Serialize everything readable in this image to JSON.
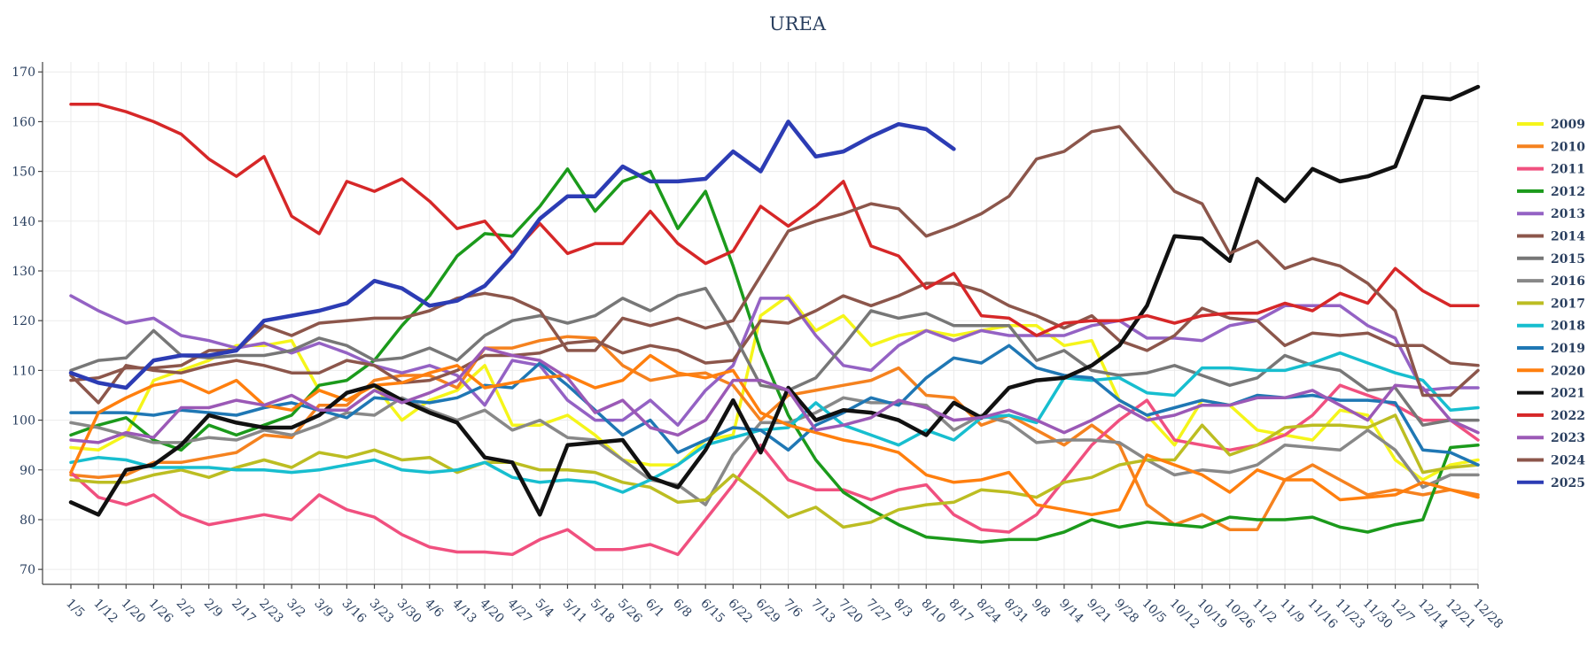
{
  "chart_data": {
    "type": "line",
    "title": "UREA",
    "xlabel": "",
    "ylabel": "",
    "ylim": [
      67,
      172
    ],
    "yticks": [
      70,
      80,
      90,
      100,
      110,
      120,
      130,
      140,
      150,
      160,
      170
    ],
    "x": [
      "1/5",
      "1/12",
      "1/20",
      "1/26",
      "2/2",
      "2/9",
      "2/17",
      "2/23",
      "3/2",
      "3/9",
      "3/16",
      "3/23",
      "3/30",
      "4/6",
      "4/13",
      "4/20",
      "4/27",
      "5/4",
      "5/11",
      "5/18",
      "5/26",
      "6/1",
      "6/8",
      "6/15",
      "6/22",
      "6/29",
      "7/6",
      "7/13",
      "7/20",
      "7/27",
      "8/3",
      "8/10",
      "8/17",
      "8/24",
      "8/31",
      "9/8",
      "9/14",
      "9/21",
      "9/28",
      "10/5",
      "10/12",
      "10/19",
      "10/26",
      "11/2",
      "11/9",
      "11/16",
      "11/23",
      "11/30",
      "12/7",
      "12/14",
      "12/21",
      "12/28"
    ],
    "grid": true,
    "legend_position": "right",
    "series": [
      {
        "name": "2009",
        "color": "#f5f51a",
        "values": [
          94.5,
          94,
          97,
          108,
          110,
          112,
          115,
          115,
          116,
          106,
          104,
          107,
          100,
          104,
          106,
          111,
          99,
          99,
          101,
          97,
          92,
          91,
          91,
          96,
          97,
          121,
          125,
          118,
          121,
          115,
          117,
          118,
          117,
          118,
          119,
          119,
          115,
          116,
          104,
          101,
          95,
          104,
          103,
          98,
          97,
          96,
          102,
          101,
          92,
          88,
          91,
          92
        ]
      },
      {
        "name": "2010",
        "color": "#f5821f",
        "values": [
          89,
          88.5,
          89,
          91.5,
          91.5,
          92.5,
          93.5,
          97,
          96.5,
          103,
          103,
          108,
          109,
          109,
          106.5,
          114.5,
          114.5,
          116,
          116.8,
          116.5,
          111,
          108,
          109,
          109.5,
          107,
          100,
          105,
          106,
          107,
          108,
          110.5,
          105,
          104.5,
          99,
          101,
          98,
          95,
          99,
          95,
          83,
          79,
          81,
          78,
          78,
          88,
          91,
          88,
          85,
          86,
          85,
          86,
          85
        ]
      },
      {
        "name": "2011",
        "color": "#f0507f",
        "values": [
          89.5,
          84.5,
          83,
          85,
          81,
          79,
          80,
          81,
          80,
          85,
          82,
          80.5,
          77,
          74.5,
          73.5,
          73.5,
          73,
          76,
          78,
          74,
          74,
          75,
          73,
          80,
          87,
          95,
          88,
          86,
          86,
          84,
          86,
          87,
          81,
          78,
          77.5,
          81,
          88,
          95,
          100,
          104,
          96,
          95,
          94,
          95,
          97,
          101,
          107,
          105,
          103,
          100,
          100,
          96
        ]
      },
      {
        "name": "2012",
        "color": "#1b9a1b",
        "values": [
          97,
          99,
          100.5,
          96,
          94,
          99,
          97,
          99,
          101,
          107,
          108,
          112,
          119,
          125,
          133,
          137.5,
          137,
          143,
          150.5,
          142,
          148,
          150,
          138.5,
          146,
          131,
          114,
          101,
          92,
          85.5,
          82,
          79,
          76.5,
          76,
          75.5,
          76,
          76,
          77.5,
          80,
          78.5,
          79.5,
          79,
          78.5,
          80.5,
          80,
          80,
          80.5,
          78.5,
          77.5,
          79,
          80,
          94.5,
          95
        ]
      },
      {
        "name": "2013",
        "color": "#9462c4",
        "values": [
          125,
          122,
          119.5,
          120.5,
          117,
          116,
          114.5,
          115.5,
          113.5,
          115.5,
          113.5,
          111,
          109.5,
          111,
          109,
          103,
          112,
          111,
          104,
          100,
          100,
          104,
          99,
          106,
          111,
          124.5,
          124.5,
          117,
          111,
          110,
          115,
          118,
          116,
          118,
          117,
          117,
          117,
          119,
          120,
          116.5,
          116.5,
          116,
          119,
          120,
          123,
          123,
          123,
          119,
          116.5,
          106,
          106.5,
          106.5
        ]
      },
      {
        "name": "2014",
        "color": "#8c564b",
        "values": [
          109,
          103.5,
          111,
          110,
          109.5,
          111,
          112,
          111,
          109.5,
          109.5,
          112,
          111,
          107.5,
          108,
          110,
          113,
          113,
          113.5,
          115.5,
          116,
          113.5,
          115,
          114,
          111.5,
          112,
          120,
          119.5,
          122,
          125,
          123,
          125,
          127.5,
          127.5,
          126,
          123,
          121,
          118.5,
          121,
          116,
          114,
          117,
          122.5,
          120.5,
          120,
          115,
          117.5,
          117,
          117.5,
          115,
          115,
          111.5,
          111
        ]
      },
      {
        "name": "2015",
        "color": "#777777",
        "values": [
          110,
          112,
          112.5,
          118,
          113,
          112.5,
          113,
          113,
          114,
          116.5,
          115,
          112,
          112.5,
          114.5,
          112,
          117,
          120,
          121,
          119.5,
          121,
          124.5,
          122,
          125,
          126.5,
          117.5,
          107,
          106,
          108.5,
          115,
          122,
          120.5,
          121.5,
          119,
          119,
          119,
          112,
          114,
          110,
          109,
          109.5,
          111,
          109,
          107,
          108.5,
          113,
          111,
          110,
          106,
          106.5,
          99,
          100,
          100
        ]
      },
      {
        "name": "2016",
        "color": "#888888",
        "values": [
          99.5,
          98.5,
          97,
          95.5,
          95.5,
          96.5,
          96,
          98,
          97,
          99,
          101.5,
          101,
          104.5,
          102,
          100,
          102,
          98,
          100,
          96.5,
          96,
          92,
          88,
          87,
          83,
          93,
          99.5,
          99.5,
          101.5,
          104.5,
          103.5,
          103.5,
          103,
          98,
          101,
          99.5,
          95.5,
          96,
          96,
          95.5,
          92,
          89,
          90,
          89.5,
          91,
          95,
          94.5,
          94,
          98,
          94,
          86.5,
          89,
          89
        ]
      },
      {
        "name": "2017",
        "color": "#bcbd22",
        "values": [
          88,
          87.5,
          87.5,
          89,
          90,
          88.5,
          90.5,
          92,
          90.5,
          93.5,
          92.5,
          94,
          92,
          92.5,
          89.5,
          91.5,
          91.5,
          90,
          90,
          89.5,
          87.5,
          86.5,
          83.5,
          84,
          89,
          85,
          80.5,
          82.5,
          78.5,
          79.5,
          82,
          83,
          83.5,
          86,
          85.5,
          84.5,
          87.5,
          88.5,
          91,
          92,
          92,
          99,
          93,
          95,
          98.5,
          99,
          99,
          98.5,
          101,
          89.5,
          90.5,
          91
        ]
      },
      {
        "name": "2018",
        "color": "#17becf",
        "values": [
          91.5,
          92.5,
          92,
          90.5,
          90.5,
          90.5,
          90,
          90,
          89.5,
          90,
          91,
          92,
          90,
          89.5,
          90,
          91.5,
          88.5,
          87.5,
          88,
          87.5,
          85.5,
          88,
          91,
          95,
          96.5,
          98,
          98.5,
          103.5,
          99,
          97,
          95,
          98,
          96,
          100.5,
          101,
          99.5,
          108.5,
          108,
          108.5,
          105.5,
          105,
          110.5,
          110.5,
          110,
          110,
          111.5,
          113.5,
          111.5,
          109.5,
          108,
          102,
          102.5
        ]
      },
      {
        "name": "2019",
        "color": "#1f77b4",
        "values": [
          101.5,
          101.5,
          101.5,
          101,
          102,
          101.5,
          101,
          102.5,
          103.5,
          102,
          100.5,
          104.5,
          104,
          103.5,
          104.5,
          107,
          106.5,
          111.5,
          107,
          102,
          97,
          100,
          93.5,
          96,
          98.5,
          98,
          94,
          99,
          101.5,
          104.5,
          103,
          108.5,
          112.5,
          111.5,
          115,
          110.5,
          109,
          108.5,
          104,
          101,
          102.5,
          104,
          103,
          105,
          104.5,
          105,
          104,
          104,
          103.5,
          94,
          93.5,
          91
        ]
      },
      {
        "name": "2020",
        "color": "#ff7f0e",
        "values": [
          89.5,
          101.5,
          104.5,
          107,
          108,
          105.5,
          108,
          103,
          102,
          106,
          104,
          107,
          107.5,
          109.5,
          111,
          106.5,
          107.5,
          108.5,
          109,
          106.5,
          108,
          113,
          109.5,
          108.5,
          110,
          101.5,
          99,
          97.5,
          96,
          95,
          93.5,
          89,
          87.5,
          88,
          89.5,
          83,
          82,
          81,
          82,
          93,
          91,
          89,
          85.5,
          90,
          88,
          88,
          84,
          84.5,
          85,
          87.5,
          86,
          84.5
        ]
      },
      {
        "name": "2021",
        "color": "#111111",
        "values": [
          83.5,
          81,
          90,
          91,
          95,
          101,
          99.5,
          98.5,
          98.5,
          101,
          105.5,
          107,
          104,
          101.5,
          99.5,
          92.5,
          91.5,
          81,
          95,
          95.5,
          96,
          88.5,
          86.5,
          94,
          104,
          93.5,
          106.5,
          100,
          102,
          101.5,
          100,
          97,
          103.5,
          100.5,
          106.5,
          108,
          108.5,
          111,
          115,
          123,
          137,
          136.5,
          132,
          148.5,
          144,
          150.5,
          148,
          149,
          151,
          165,
          164.5,
          167
        ]
      },
      {
        "name": "2022",
        "color": "#d62728",
        "values": [
          163.5,
          163.5,
          162,
          160,
          157.5,
          152.5,
          149,
          153,
          141,
          137.5,
          148,
          146,
          148.5,
          144,
          138.5,
          140,
          133.5,
          139.5,
          133.5,
          135.5,
          135.5,
          142,
          135.5,
          131.5,
          134,
          143,
          139,
          143,
          148,
          135,
          133,
          126.5,
          129.5,
          121,
          120.5,
          117,
          119.5,
          120,
          120,
          121,
          119.5,
          121,
          121.5,
          121.5,
          123.5,
          122,
          125.5,
          123.5,
          130.5,
          126,
          123,
          123
        ]
      },
      {
        "name": "2023",
        "color": "#9b59b6",
        "values": [
          96,
          95.5,
          97.5,
          96.5,
          102.5,
          102.5,
          104,
          103,
          105,
          102,
          102,
          106,
          103.5,
          105.5,
          108,
          114.5,
          113,
          112,
          108.5,
          101.5,
          104,
          98.5,
          97,
          100,
          108,
          108,
          106,
          98,
          99,
          100.5,
          104,
          102.5,
          100,
          100.5,
          102,
          100,
          97.5,
          100,
          103,
          100,
          101,
          103,
          103,
          104.5,
          104.5,
          106,
          103,
          100,
          107,
          106.5,
          100,
          97.5
        ]
      },
      {
        "name": "2024",
        "color": "#8c564b",
        "values": [
          108,
          108.5,
          110.5,
          110.5,
          111,
          114,
          114,
          119,
          117,
          119.5,
          120,
          120.5,
          120.5,
          122,
          124.5,
          125.5,
          124.5,
          122,
          114,
          114,
          120.5,
          119,
          120.5,
          118.5,
          120,
          129,
          138,
          140,
          141.5,
          143.5,
          142.5,
          137,
          139,
          141.5,
          145,
          152.5,
          154,
          158,
          159,
          152.5,
          146,
          143.5,
          133.5,
          136,
          130.5,
          132.5,
          131,
          127.5,
          122,
          105,
          105,
          110
        ]
      },
      {
        "name": "2025",
        "color": "#2c3cb4",
        "values": [
          109.5,
          107.5,
          106.5,
          112,
          113,
          113,
          114,
          120,
          121,
          122,
          123.5,
          128,
          126.5,
          123,
          124,
          127,
          133,
          140.5,
          145,
          145,
          151,
          148,
          148,
          148.5,
          154,
          150,
          160,
          153,
          154,
          157,
          159.5,
          158.5,
          154.5,
          null,
          null,
          null,
          null,
          null,
          null,
          null,
          null,
          null,
          null,
          null,
          null,
          null,
          null,
          null,
          null,
          null,
          null,
          null
        ]
      }
    ]
  }
}
